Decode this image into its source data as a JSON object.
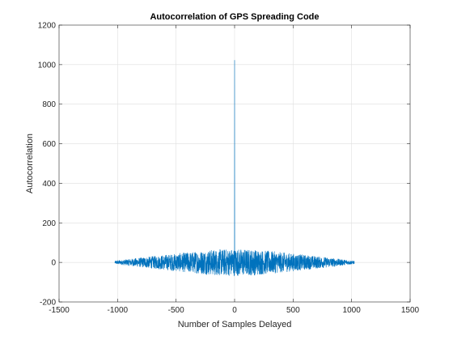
{
  "chart_data": {
    "type": "line",
    "title": "Autocorrelation of GPS Spreading Code",
    "xlabel": "Number of Samples Delayed",
    "ylabel": "Autocorrelation",
    "xlim": [
      -1500,
      1500
    ],
    "ylim": [
      -200,
      1200
    ],
    "xticks": [
      -1500,
      -1000,
      -500,
      0,
      500,
      1000,
      1500
    ],
    "xtick_labels": [
      "-1500",
      "-1000",
      "-500",
      "0",
      "500",
      "1000",
      "1500"
    ],
    "yticks": [
      -200,
      0,
      200,
      400,
      600,
      800,
      1000,
      1200
    ],
    "ytick_labels": [
      "-200",
      "0",
      "200",
      "400",
      "600",
      "800",
      "1000",
      "1200"
    ],
    "grid": true,
    "legend": "none",
    "series": [
      {
        "color": "#0072bd",
        "lag_range": [
          -1023,
          1023
        ],
        "peak": {
          "x": 0,
          "y": 1023
        },
        "sidelobe_envelope": [
          {
            "x": -1023,
            "y": 8
          },
          {
            "x": -800,
            "y": 25
          },
          {
            "x": -500,
            "y": 45
          },
          {
            "x": -200,
            "y": 65
          },
          {
            "x": 0,
            "y": 70
          },
          {
            "x": 200,
            "y": 65
          },
          {
            "x": 500,
            "y": 45
          },
          {
            "x": 800,
            "y": 25
          },
          {
            "x": 1023,
            "y": 8
          }
        ]
      }
    ]
  }
}
